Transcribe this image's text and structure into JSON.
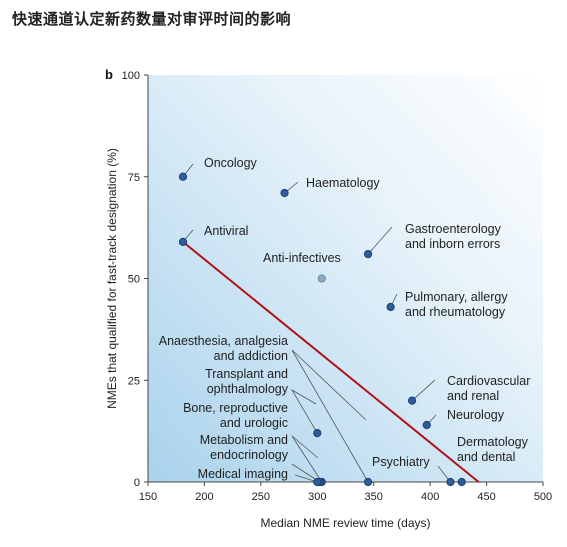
{
  "page_title": "快速通道认定新药数量对审评时间的影响",
  "chart_data": {
    "type": "scatter",
    "panel_label": "b",
    "xlabel": "Median NME review time (days)",
    "ylabel": "NMEs that qualified for fast-track designation (%)",
    "xlim": [
      150,
      500
    ],
    "ylim": [
      0,
      100
    ],
    "x_ticks": [
      150,
      200,
      250,
      300,
      350,
      400,
      450,
      500
    ],
    "y_ticks": [
      0,
      25,
      50,
      75,
      100
    ],
    "grid": false,
    "colors": {
      "point": "#2e5d9b",
      "trend": "#b01218",
      "background_from": "#a9d2ec",
      "background_to": "#ffffff"
    },
    "points": [
      {
        "lines": [
          "Oncology"
        ],
        "x": 181,
        "y": 75,
        "highlight": true
      },
      {
        "lines": [
          "Haematology"
        ],
        "x": 271,
        "y": 71,
        "highlight": true
      },
      {
        "lines": [
          "Antiviral"
        ],
        "x": 181,
        "y": 59,
        "highlight": true
      },
      {
        "lines": [
          "Gastroenterology",
          "and inborn errors"
        ],
        "x": 345,
        "y": 56,
        "highlight": true
      },
      {
        "lines": [
          "Anti-infectives"
        ],
        "x": 304,
        "y": 50,
        "highlight": false
      },
      {
        "lines": [
          "Pulmonary, allergy",
          "and rheumatology"
        ],
        "x": 365,
        "y": 43,
        "highlight": true
      },
      {
        "lines": [
          "Anaesthesia, analgesia",
          "and addiction"
        ],
        "x": 345,
        "y": 0,
        "highlight": true
      },
      {
        "lines": [
          "Transplant and",
          "ophthalmology"
        ],
        "x": 300,
        "y": 12,
        "highlight": true
      },
      {
        "lines": [
          "Bone, reproductive",
          "and urologic"
        ],
        "x": 304,
        "y": 0,
        "highlight": true
      },
      {
        "lines": [
          "Metabolism and",
          "endocrinology"
        ],
        "x": 302,
        "y": 0,
        "highlight": true
      },
      {
        "lines": [
          "Medical imaging"
        ],
        "x": 300,
        "y": 0,
        "highlight": true
      },
      {
        "lines": [
          "Cardiovascular",
          "and renal"
        ],
        "x": 384,
        "y": 20,
        "highlight": true
      },
      {
        "lines": [
          "Neurology"
        ],
        "x": 397,
        "y": 14,
        "highlight": true
      },
      {
        "lines": [
          "Psychiatry"
        ],
        "x": 418,
        "y": 0,
        "highlight": true
      },
      {
        "lines": [
          "Dermatology",
          "and dental"
        ],
        "x": 428,
        "y": 0,
        "highlight": true
      }
    ],
    "trendline": {
      "x": [
        181,
        443
      ],
      "y": [
        59,
        0
      ]
    }
  }
}
